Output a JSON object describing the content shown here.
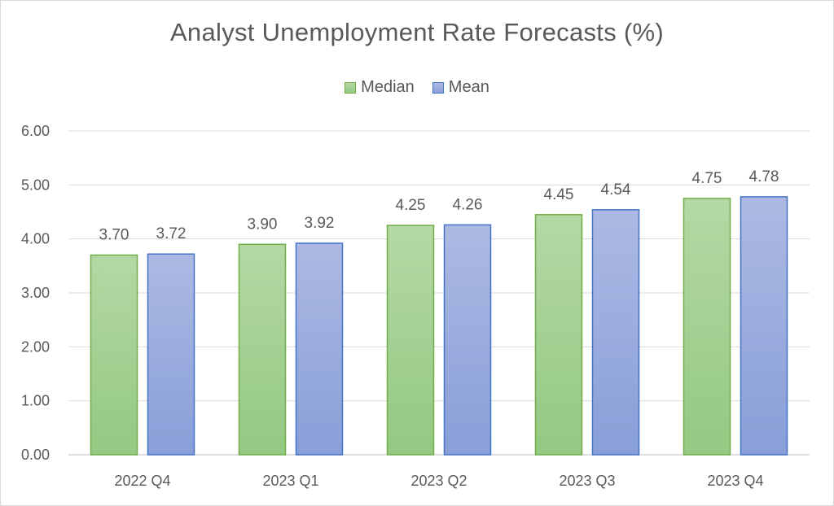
{
  "chart_data": {
    "type": "bar",
    "title": "Analyst Unemployment Rate Forecasts (%)",
    "xlabel": "",
    "ylabel": "",
    "categories": [
      "2022 Q4",
      "2023 Q1",
      "2023 Q2",
      "2023 Q3",
      "2023 Q4"
    ],
    "series": [
      {
        "name": "Median",
        "values": [
          3.7,
          3.9,
          4.25,
          4.45,
          4.75
        ],
        "color": "#70AD47",
        "fill_top": "#b5d8a4",
        "fill_bottom": "#93c982"
      },
      {
        "name": "Mean",
        "values": [
          3.72,
          3.92,
          4.26,
          4.54,
          4.78
        ],
        "color": "#4472C4",
        "fill_top": "#adb9e3",
        "fill_bottom": "#889fd8"
      }
    ],
    "ylim": [
      0,
      6
    ],
    "yticks": [
      "0.00",
      "1.00",
      "2.00",
      "3.00",
      "4.00",
      "5.00",
      "6.00"
    ],
    "data_labels": [
      [
        "3.70",
        "3.90",
        "4.25",
        "4.45",
        "4.75"
      ],
      [
        "3.72",
        "3.92",
        "4.26",
        "4.54",
        "4.78"
      ]
    ],
    "grid": true,
    "legend_position": "top"
  }
}
